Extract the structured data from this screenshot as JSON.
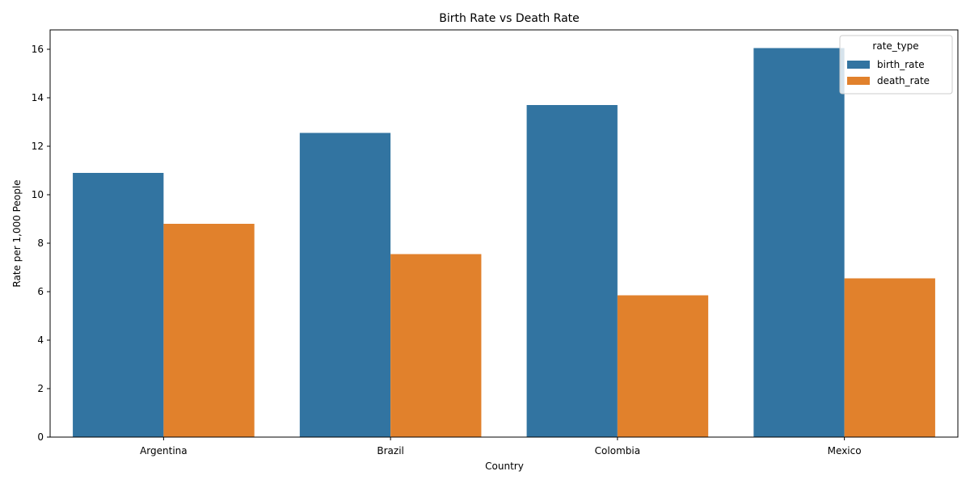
{
  "chart_data": {
    "type": "bar",
    "title": "Birth Rate vs Death Rate",
    "xlabel": "Country",
    "ylabel": "Rate per 1,000 People",
    "categories": [
      "Argentina",
      "Brazil",
      "Colombia",
      "Mexico"
    ],
    "series": [
      {
        "name": "birth_rate",
        "color": "#3274a1",
        "values": [
          10.9,
          12.55,
          13.7,
          16.05
        ]
      },
      {
        "name": "death_rate",
        "color": "#e1812c",
        "values": [
          8.8,
          7.55,
          5.85,
          6.55
        ]
      }
    ],
    "ylim": [
      0,
      16.8
    ],
    "yticks": [
      0,
      2,
      4,
      6,
      8,
      10,
      12,
      14,
      16
    ],
    "legend": {
      "title": "rate_type",
      "placement": "top-right"
    },
    "grid": false
  }
}
